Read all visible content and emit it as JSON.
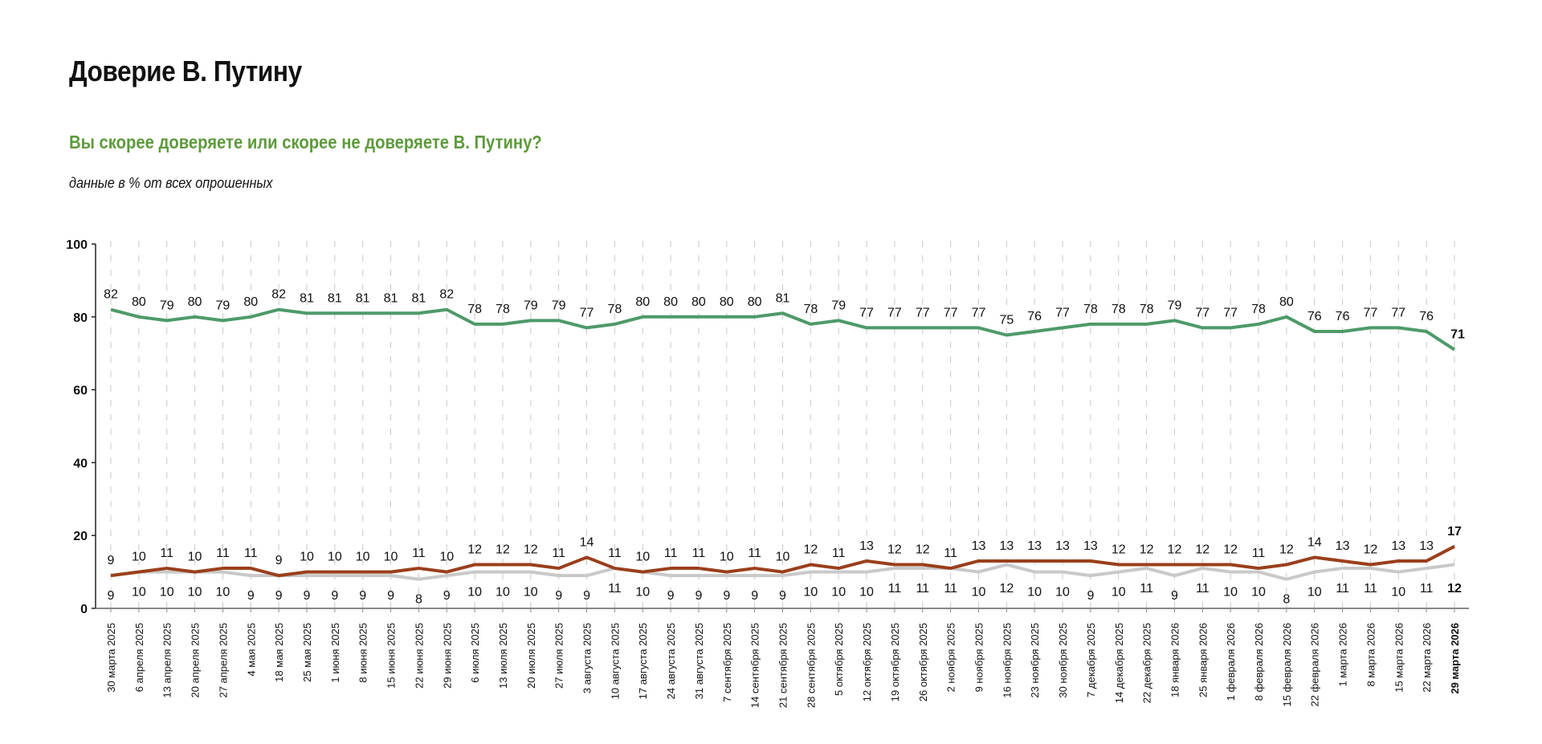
{
  "title": "Доверие В. Путину",
  "subtitle": "Вы скорее доверяете или скорее не доверяете В. Путину?",
  "note": "данные в % от всех опрошенных",
  "chart_data": {
    "type": "line",
    "ylim": [
      0,
      100
    ],
    "yticks": [
      "0",
      "20",
      "40",
      "60",
      "80",
      "100"
    ],
    "grid": "vertical dashed",
    "legend": "none",
    "categories": [
      "30 марта 2025",
      "6 апреля 2025",
      "13 апреля 2025",
      "20 апреля 2025",
      "27 апреля 2025",
      "4 мая 2025",
      "18 мая 2025",
      "25 мая 2025",
      "1 июня 2025",
      "8 июня 2025",
      "15 июня 2025",
      "22 июня 2025",
      "29 июня 2025",
      "6 июля 2025",
      "13 июля 2025",
      "20 июля 2025",
      "27 июля 2025",
      "3 августа 2025",
      "10 августа 2025",
      "17 августа 2025",
      "24 августа 2025",
      "31 августа 2025",
      "7 сентября 2025",
      "14 сентября 2025",
      "21 сентября 2025",
      "28 сентября 2025",
      "5 октября 2025",
      "12 октября 2025",
      "19 октября 2025",
      "26 октября 2025",
      "2 ноября 2025",
      "9 ноября 2025",
      "16 ноября 2025",
      "23 ноября 2025",
      "30 ноября 2025",
      "7 декабря 2025",
      "14 декабря 2025",
      "22 декабря 2025",
      "18 января 2026",
      "25 января 2026",
      "1 февраля 2026",
      "8 февраля 2026",
      "15 февраля 2026",
      "22 февраля 2026",
      "1 марта 2026",
      "8 марта 2026",
      "15 марта 2026",
      "22 марта 2026",
      "29 марта 2026"
    ],
    "series": [
      {
        "key": "trust",
        "color": "#4e9a69",
        "label_pos": "above",
        "values": [
          82,
          80,
          79,
          80,
          79,
          80,
          82,
          81,
          81,
          81,
          81,
          81,
          82,
          78,
          78,
          79,
          79,
          77,
          78,
          80,
          80,
          80,
          80,
          80,
          81,
          78,
          79,
          77,
          77,
          77,
          77,
          77,
          75,
          76,
          77,
          78,
          78,
          78,
          79,
          77,
          77,
          78,
          80,
          76,
          76,
          77,
          77,
          76,
          71
        ]
      },
      {
        "key": "distrust",
        "color": "#9a3f1c",
        "label_pos": "above",
        "values": [
          9,
          10,
          11,
          10,
          11,
          11,
          9,
          10,
          10,
          10,
          10,
          11,
          10,
          12,
          12,
          12,
          11,
          14,
          11,
          10,
          11,
          11,
          10,
          11,
          10,
          12,
          11,
          13,
          12,
          12,
          11,
          13,
          13,
          13,
          13,
          13,
          12,
          12,
          12,
          12,
          12,
          11,
          12,
          14,
          13,
          12,
          13,
          13,
          17
        ]
      },
      {
        "key": "dont_know",
        "color": "#c9c9c9",
        "label_pos": "below",
        "values": [
          9,
          10,
          10,
          10,
          10,
          9,
          9,
          9,
          9,
          9,
          9,
          8,
          9,
          10,
          10,
          10,
          9,
          9,
          11,
          10,
          9,
          9,
          9,
          9,
          9,
          10,
          10,
          10,
          11,
          11,
          11,
          10,
          12,
          10,
          10,
          9,
          10,
          11,
          9,
          11,
          10,
          10,
          8,
          10,
          11,
          11,
          10,
          11,
          12
        ]
      }
    ]
  }
}
